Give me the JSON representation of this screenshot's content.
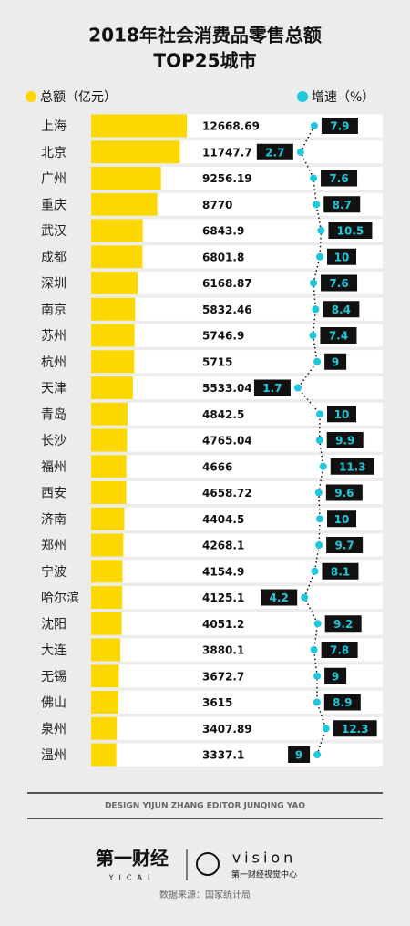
{
  "chart_data": {
    "type": "bar",
    "title": "2018年社会消费品零售总额",
    "subtitle": "TOP25城市",
    "categories": [
      "上海",
      "北京",
      "广州",
      "重庆",
      "武汉",
      "成都",
      "深圳",
      "南京",
      "苏州",
      "杭州",
      "天津",
      "青岛",
      "长沙",
      "福州",
      "西安",
      "济南",
      "郑州",
      "宁波",
      "哈尔滨",
      "沈阳",
      "大连",
      "无锡",
      "佛山",
      "泉州",
      "温州"
    ],
    "series": [
      {
        "name": "总额（亿元）",
        "color": "#fcd800",
        "values": [
          12668.69,
          11747.7,
          9256.19,
          8770,
          6843.9,
          6801.8,
          6168.87,
          5832.46,
          5746.9,
          5715,
          5533.04,
          4842.5,
          4765.04,
          4666,
          4658.72,
          4404.5,
          4268.1,
          4154.9,
          4125.1,
          4051.2,
          3880.1,
          3672.7,
          3615,
          3407.89,
          3337.1
        ]
      },
      {
        "name": "增速（%）",
        "color": "#1ec8dc",
        "values": [
          7.9,
          2.7,
          7.6,
          8.7,
          10.5,
          10,
          7.6,
          8.4,
          7.4,
          9,
          1.7,
          10,
          9.9,
          11.3,
          9.6,
          10,
          9.7,
          8.1,
          4.2,
          9.2,
          7.8,
          9,
          8.9,
          12.3,
          9
        ]
      }
    ]
  },
  "footer": {
    "credit": "DESIGN YIJUN ZHANG    EDITOR JUNQING YAO",
    "logo1": "第一财经",
    "logo1_sub": "YICAI",
    "logo2": "vision",
    "logo2_sub": "第一财经视觉中心",
    "source": "数据来源：国家统计局"
  }
}
